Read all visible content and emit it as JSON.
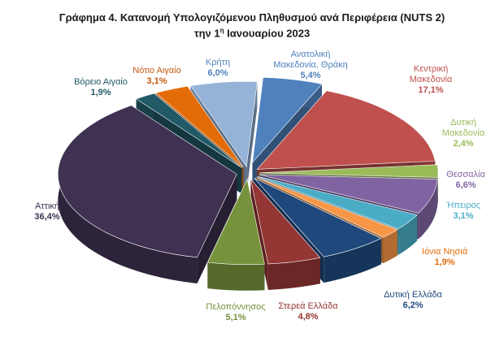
{
  "chart_data": {
    "type": "pie",
    "title_line1": "Γράφημα 4. Κατανομή Υπολογιζόμενου Πληθυσμού ανά Περιφέρεια (NUTS 2)",
    "title_line2_pre": "την 1",
    "title_line2_sup": "η",
    "title_line2_post": " Ιανουαρίου 2023",
    "slices": [
      {
        "name": "Ανατολική Μακεδονία, Θράκη",
        "value": 5.4,
        "label": "5,4%",
        "color": "#4F81BD"
      },
      {
        "name": "Κεντρική Μακεδονία",
        "value": 17.1,
        "label": "17,1%",
        "color": "#C0504D"
      },
      {
        "name": "Δυτική Μακεδονία",
        "value": 2.4,
        "label": "2,4%",
        "color": "#9BBB59"
      },
      {
        "name": "Θεσσαλία",
        "value": 6.6,
        "label": "6,6%",
        "color": "#8064A2"
      },
      {
        "name": "Ήπειρος",
        "value": 3.1,
        "label": "3,1%",
        "color": "#4BACC6"
      },
      {
        "name": "Ιόνια Νησιά",
        "value": 1.9,
        "label": "1,9%",
        "color": "#F79646"
      },
      {
        "name": "Δυτική Ελλάδα",
        "value": 6.2,
        "label": "6,2%",
        "color": "#1F497D"
      },
      {
        "name": "Στερεά Ελλάδα",
        "value": 4.8,
        "label": "4,8%",
        "color": "#943634"
      },
      {
        "name": "Πελοπόννησος",
        "value": 5.1,
        "label": "5,1%",
        "color": "#76923C"
      },
      {
        "name": "Αττική",
        "value": 36.4,
        "label": "36,4%",
        "color": "#3F3151"
      },
      {
        "name": "Βόρειο Αιγαίο",
        "value": 1.9,
        "label": "1,9%",
        "color": "#215967"
      },
      {
        "name": "Νότιο Αιγαίο",
        "value": 3.1,
        "label": "3,1%",
        "color": "#E36C09"
      },
      {
        "name": "Κρήτη",
        "value": 6.0,
        "label": "6,0%",
        "color": "#95B3D7"
      }
    ],
    "label_colors": {
      "Ανατολική Μακεδονία, Θράκη": "#4F81BD",
      "Κεντρική Μακεδονία": "#C0504D",
      "Δυτική Μακεδονία": "#9BBB59",
      "Θεσσαλία": "#8064A2",
      "Ήπειρος": "#4BACC6",
      "Ιόνια Νησιά": "#E36C09",
      "Δυτική Ελλάδα": "#1F497D",
      "Στερεά Ελλάδα": "#943634",
      "Πελοπόννησος": "#76923C",
      "Αττική": "#3F3151",
      "Βόρειο Αιγαίο": "#215967",
      "Νότιο Αιγαίο": "#C55A11",
      "Κρήτη": "#4F81BD"
    },
    "legend": "none",
    "style": "3d-exploded-pie"
  }
}
